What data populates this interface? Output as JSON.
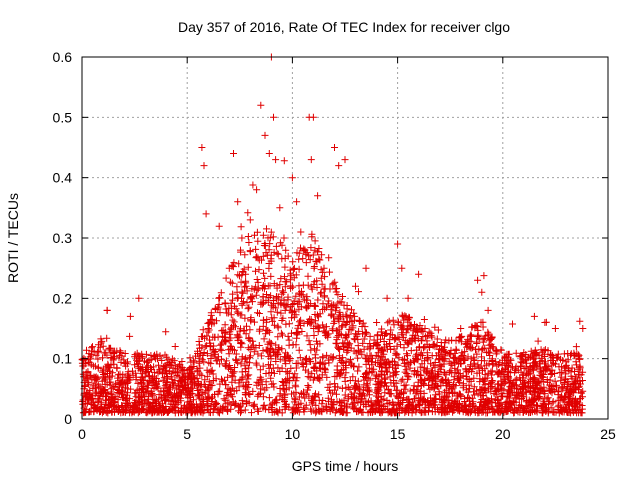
{
  "chart_data": {
    "type": "scatter",
    "title": "Day 357 of 2016, Rate Of TEC Index for receiver clgo",
    "xlabel": "GPS time / hours",
    "ylabel": "ROTI / TECUs",
    "xlim": [
      0,
      25
    ],
    "ylim": [
      0,
      0.6
    ],
    "grid": true,
    "marker": "+",
    "color": "#e00000",
    "x_ticks": [
      "0",
      "5",
      "10",
      "15",
      "20",
      "25"
    ],
    "y_ticks": [
      "0",
      "0.1",
      "0.2",
      "0.3",
      "0.4",
      "0.5",
      "0.6"
    ],
    "x_tick_values": [
      0,
      5,
      10,
      15,
      20,
      25
    ],
    "y_tick_values": [
      0,
      0.1,
      0.2,
      0.3,
      0.4,
      0.5,
      0.6
    ],
    "series": [
      {
        "name": "ROTI",
        "x": [
          0.1,
          0.5,
          1.0,
          1.2,
          1.5,
          2.0,
          2.3,
          2.5,
          2.7,
          3.0,
          3.5,
          4.0,
          4.5,
          5.0,
          5.5,
          5.7,
          5.8,
          5.9,
          6.0,
          6.5,
          7.0,
          7.2,
          7.4,
          7.6,
          7.8,
          8.0,
          8.3,
          8.5,
          8.7,
          8.9,
          9.0,
          9.1,
          9.2,
          9.4,
          9.6,
          9.8,
          10.0,
          10.2,
          10.4,
          10.6,
          10.8,
          10.9,
          11.0,
          11.2,
          11.5,
          12.0,
          12.2,
          12.5,
          13.0,
          13.5,
          14.0,
          14.5,
          15.0,
          15.2,
          15.5,
          16.0,
          16.3,
          16.5,
          17.0,
          17.5,
          18.0,
          18.5,
          18.8,
          19.0,
          19.3,
          19.5,
          20.0,
          20.5,
          21.0,
          21.5,
          22.0,
          22.5,
          23.0,
          23.5,
          23.8
        ],
        "y": [
          0.05,
          0.12,
          0.08,
          0.18,
          0.1,
          0.06,
          0.17,
          0.09,
          0.2,
          0.07,
          0.1,
          0.06,
          0.05,
          0.04,
          0.08,
          0.45,
          0.42,
          0.34,
          0.15,
          0.2,
          0.25,
          0.44,
          0.36,
          0.3,
          0.22,
          0.33,
          0.38,
          0.52,
          0.47,
          0.44,
          0.6,
          0.5,
          0.43,
          0.35,
          0.3,
          0.27,
          0.4,
          0.36,
          0.31,
          0.28,
          0.5,
          0.43,
          0.5,
          0.37,
          0.25,
          0.45,
          0.42,
          0.43,
          0.22,
          0.25,
          0.16,
          0.2,
          0.29,
          0.25,
          0.2,
          0.24,
          0.15,
          0.12,
          0.1,
          0.08,
          0.15,
          0.1,
          0.23,
          0.21,
          0.18,
          0.12,
          0.08,
          0.06,
          0.11,
          0.17,
          0.16,
          0.15,
          0.08,
          0.12,
          0.15
        ]
      }
    ],
    "density_profile": {
      "x": [
        0,
        1,
        2,
        3,
        4,
        5,
        6,
        7,
        8,
        9,
        10,
        11,
        12,
        13,
        14,
        15,
        16,
        17,
        18,
        19,
        20,
        21,
        22,
        23,
        24
      ],
      "typical_max": [
        0.1,
        0.12,
        0.1,
        0.1,
        0.1,
        0.07,
        0.16,
        0.24,
        0.3,
        0.3,
        0.26,
        0.3,
        0.22,
        0.16,
        0.13,
        0.17,
        0.15,
        0.12,
        0.13,
        0.16,
        0.1,
        0.1,
        0.11,
        0.1,
        0.1
      ],
      "samples_per_hour": 150
    }
  }
}
